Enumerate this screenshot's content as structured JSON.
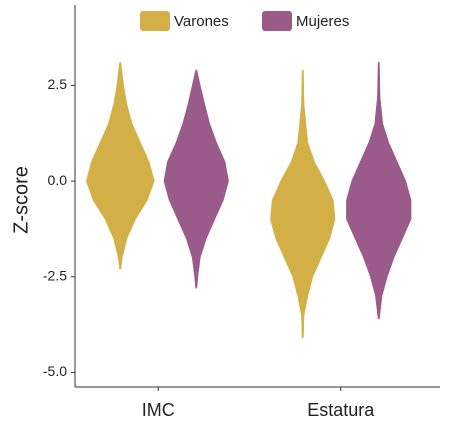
{
  "chart_data": {
    "type": "violin",
    "ylabel": "Z-score",
    "categories": [
      "IMC",
      "Estatura"
    ],
    "ylim": [
      -5.38,
      4.6
    ],
    "yticks": [
      2.5,
      {
        "value": 0,
        "label": "0.0"
      },
      -2.5,
      {
        "value": -5,
        "label": "-5.0"
      }
    ],
    "legend": "top",
    "series": [
      {
        "name": "Varones",
        "color": "#d3b047",
        "violins": [
          {
            "y": [
              3.1,
              2.5,
              2.0,
              1.5,
              1.0,
              0.5,
              0.0,
              -0.5,
              -1.0,
              -1.5,
              -2.0,
              -2.3
            ],
            "width": [
              0.02,
              0.1,
              0.2,
              0.35,
              0.6,
              0.85,
              1.0,
              0.8,
              0.45,
              0.2,
              0.06,
              0.02
            ]
          },
          {
            "y": [
              2.9,
              2.0,
              1.0,
              0.5,
              0.0,
              -0.5,
              -1.0,
              -1.5,
              -2.0,
              -2.5,
              -3.0,
              -3.5,
              -4.1
            ],
            "width": [
              0.02,
              0.04,
              0.15,
              0.35,
              0.65,
              0.9,
              0.95,
              0.8,
              0.55,
              0.3,
              0.15,
              0.04,
              0.02
            ]
          }
        ]
      },
      {
        "name": "Mujeres",
        "color": "#9a5b8b",
        "violins": [
          {
            "y": [
              2.9,
              2.5,
              2.0,
              1.5,
              1.0,
              0.5,
              0.0,
              -0.5,
              -1.0,
              -1.5,
              -2.0,
              -2.5,
              -2.8
            ],
            "width": [
              0.02,
              0.12,
              0.25,
              0.4,
              0.6,
              0.85,
              0.95,
              0.8,
              0.55,
              0.3,
              0.12,
              0.05,
              0.02
            ]
          },
          {
            "y": [
              3.1,
              2.2,
              1.5,
              1.0,
              0.5,
              0.0,
              -0.5,
              -1.0,
              -1.5,
              -2.0,
              -2.5,
              -3.0,
              -3.6
            ],
            "width": [
              0.02,
              0.04,
              0.12,
              0.3,
              0.55,
              0.8,
              0.95,
              0.95,
              0.7,
              0.45,
              0.25,
              0.1,
              0.02
            ]
          }
        ]
      }
    ]
  }
}
